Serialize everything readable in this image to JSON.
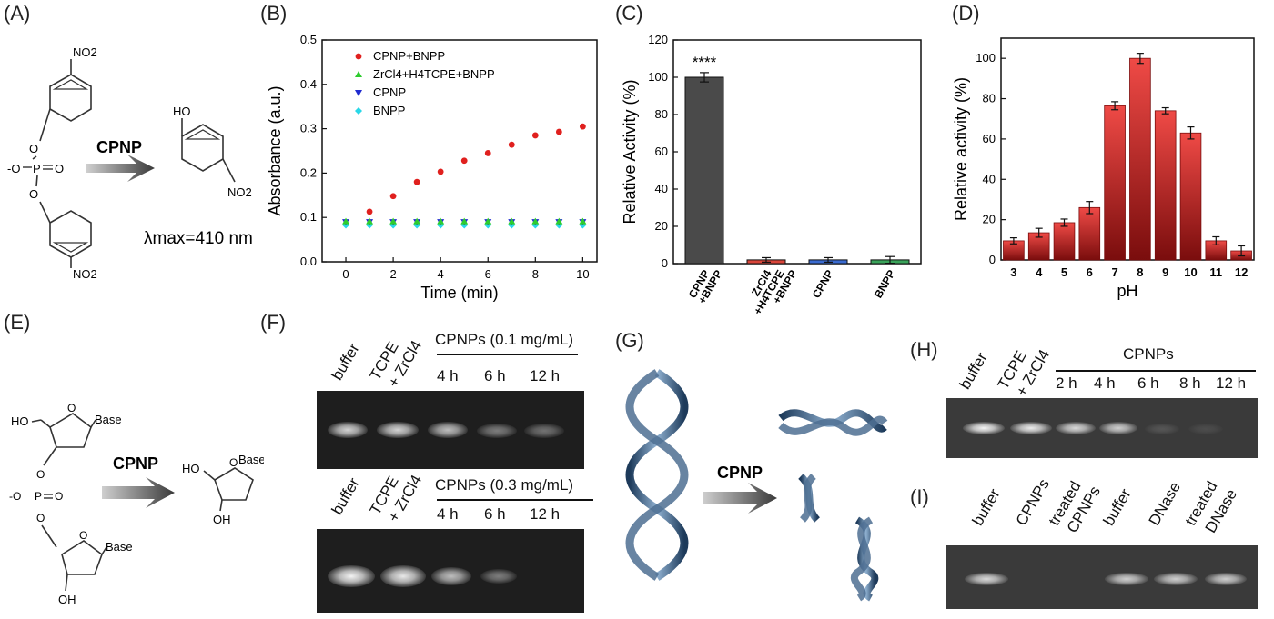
{
  "panels": {
    "A": {
      "label": "(A)",
      "no2_top": "NO2",
      "no2_bottom": "NO2",
      "phosphate_o_minus": "-O",
      "phosphate_p": "P",
      "phosphate_eq_o": "O",
      "arrow_label": "CPNP",
      "product_oh": "HO",
      "product_no2": "NO2",
      "lambda_text": "λmax=410 nm"
    },
    "B": {
      "label": "(B)",
      "chart_data": {
        "type": "scatter",
        "xlabel": "Time (min)",
        "ylabel": "Absorbance (a.u.)",
        "xlim": [
          -1,
          10.6
        ],
        "ylim": [
          0,
          0.5
        ],
        "xticks": [
          0,
          2,
          4,
          6,
          8,
          10
        ],
        "yticks": [
          0.0,
          0.1,
          0.2,
          0.3,
          0.4,
          0.5
        ],
        "legend_position": "top-left",
        "x": [
          0,
          1,
          2,
          3,
          4,
          5,
          6,
          7,
          8,
          9,
          10
        ],
        "series": [
          {
            "name": "CPNP+BNPP",
            "color": "#e0201e",
            "marker": "circle",
            "values": [
              0.09,
              0.113,
              0.148,
              0.18,
              0.203,
              0.228,
              0.245,
              0.264,
              0.285,
              0.293,
              0.305
            ]
          },
          {
            "name": "ZrCl4+H4TCPE+BNPP",
            "color": "#2ecc2e",
            "marker": "triangle-up",
            "values": [
              0.091,
              0.091,
              0.091,
              0.091,
              0.091,
              0.091,
              0.091,
              0.091,
              0.091,
              0.091,
              0.091
            ]
          },
          {
            "name": "CPNP",
            "color": "#1f2bd0",
            "marker": "triangle-down",
            "values": [
              0.09,
              0.09,
              0.09,
              0.09,
              0.09,
              0.09,
              0.09,
              0.09,
              0.09,
              0.09,
              0.09
            ]
          },
          {
            "name": "BNPP",
            "color": "#29d8e8",
            "marker": "diamond",
            "values": [
              0.083,
              0.083,
              0.083,
              0.083,
              0.083,
              0.083,
              0.083,
              0.083,
              0.083,
              0.083,
              0.083
            ]
          }
        ]
      }
    },
    "C": {
      "label": "(C)",
      "chart_data": {
        "type": "bar",
        "ylabel": "Relative Activity (%)",
        "ylim": [
          0,
          120
        ],
        "yticks": [
          0,
          20,
          40,
          60,
          80,
          100,
          120
        ],
        "categories": [
          "CPNP +BNPP",
          "ZrCl4 +H4TCPE +BNPP",
          "CPNP",
          "BNPP"
        ],
        "values": [
          100,
          2,
          2,
          2
        ],
        "errors": [
          2.5,
          1.2,
          1.2,
          1.8
        ],
        "colors": [
          "#4a4a4a",
          "#d9453a",
          "#3a6bd0",
          "#3aa35a"
        ],
        "annotation": "****"
      }
    },
    "D": {
      "label": "(D)",
      "chart_data": {
        "type": "bar",
        "xlabel": "pH",
        "ylabel": "Relative activity (%)",
        "ylim": [
          0,
          110
        ],
        "yticks": [
          0,
          20,
          40,
          60,
          80,
          100
        ],
        "categories": [
          "3",
          "4",
          "5",
          "6",
          "7",
          "8",
          "9",
          "10",
          "11",
          "12"
        ],
        "values": [
          9.5,
          13.5,
          18.5,
          26,
          76.5,
          100,
          74,
          63,
          9.5,
          4.5
        ],
        "errors": [
          1.5,
          2.2,
          1.8,
          3,
          2,
          2.5,
          1.5,
          3,
          2,
          2.5
        ],
        "color": "#d42a2a"
      }
    },
    "E": {
      "label": "(E)",
      "ho": "HO",
      "base_top": "Base",
      "phosphate": "-O-P=O",
      "oh_bottom": "OH",
      "base_bottom": "Base",
      "arrow_label": "CPNP",
      "product_ho": "HO",
      "product_base": "Base",
      "product_oh": "OH"
    },
    "F": {
      "label": "(F)",
      "top": {
        "lane_buffer": "buffer",
        "lane_tcpe": "TCPE",
        "lane_zr": "+ ZrCl4",
        "group_title": "CPNPs (0.1 mg/mL)",
        "times": [
          "4 h",
          "6 h",
          "12 h"
        ]
      },
      "bottom": {
        "lane_buffer": "buffer",
        "lane_tcpe": "TCPE",
        "lane_zr": "+ ZrCl4",
        "group_title": "CPNPs (0.3 mg/mL)",
        "times": [
          "4 h",
          "6 h",
          "12 h"
        ]
      }
    },
    "G": {
      "label": "(G)",
      "arrow_label": "CPNP"
    },
    "H": {
      "label": "(H)",
      "lane_buffer": "buffer",
      "lane_tcpe": "TCPE",
      "lane_zr": "+ ZrCl4",
      "group_title": "CPNPs",
      "times": [
        "2 h",
        "4 h",
        "6 h",
        "8 h",
        "12 h"
      ]
    },
    "I": {
      "label": "(I)",
      "lanes": [
        "buffer",
        "CPNPs",
        "treated",
        "CPNPs",
        "buffer",
        "DNase",
        "treated",
        "DNase"
      ]
    }
  }
}
